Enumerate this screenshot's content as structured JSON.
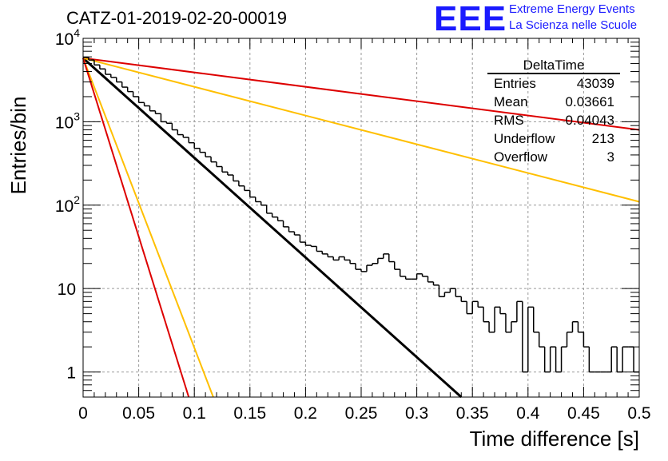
{
  "plot_title": "CATZ-01-2019-02-20-00019",
  "logo": {
    "mark": "EEE",
    "line1": "Extreme Energy Events",
    "line2": "La Scienza nelle Scuole"
  },
  "stats_box": {
    "title": "DeltaTime",
    "rows": [
      {
        "label": "Entries",
        "value": "43039"
      },
      {
        "label": "Mean",
        "value": "0.03661"
      },
      {
        "label": "RMS",
        "value": "0.04043"
      },
      {
        "label": "Underflow",
        "value": "213"
      },
      {
        "label": "Overflow",
        "value": "3"
      }
    ]
  },
  "colors": {
    "histogram": "#000000",
    "fit_black": "#000000",
    "red": "#dd0000",
    "orange": "#ffbf00",
    "grid": "#9a9a9a"
  },
  "chart_data": {
    "type": "line",
    "title": "CATZ-01-2019-02-20-00019",
    "xlabel": "Time difference [s]",
    "ylabel": "Entries/bin",
    "xlim": [
      0,
      0.5
    ],
    "ylim": [
      0.5,
      10000
    ],
    "yscale": "log",
    "grid": true,
    "x_ticks": [
      0,
      0.05,
      0.1,
      0.15,
      0.2,
      0.25,
      0.3,
      0.35,
      0.4,
      0.45,
      0.5
    ],
    "x_tick_labels": [
      "0",
      "0.05",
      "0.1",
      "0.15",
      "0.2",
      "0.25",
      "0.3",
      "0.35",
      "0.4",
      "0.45",
      "0.5"
    ],
    "y_ticks": [
      1,
      10,
      100,
      1000,
      10000
    ],
    "y_tick_labels": [
      {
        "base": "1",
        "exp": ""
      },
      {
        "base": "10",
        "exp": ""
      },
      {
        "base": "10",
        "exp": "2"
      },
      {
        "base": "10",
        "exp": "3"
      },
      {
        "base": "10",
        "exp": "4"
      }
    ],
    "histogram": {
      "bin_width": 0.005,
      "x_start": 0,
      "counts": [
        5900,
        5500,
        4800,
        4300,
        3700,
        3400,
        3000,
        2600,
        2300,
        2000,
        1700,
        1550,
        1350,
        1250,
        1000,
        960,
        800,
        700,
        650,
        560,
        480,
        430,
        380,
        330,
        290,
        250,
        230,
        195,
        170,
        150,
        125,
        110,
        100,
        80,
        72,
        65,
        55,
        48,
        44,
        36,
        33,
        32,
        28,
        26,
        24,
        22,
        24,
        22,
        20,
        17,
        16,
        19,
        20,
        23,
        26,
        21,
        17,
        14,
        13,
        13,
        15,
        14,
        12,
        11,
        8,
        9,
        10,
        8,
        7,
        5,
        7,
        6,
        4,
        3,
        6,
        5,
        3,
        4,
        7,
        1,
        6,
        3,
        2,
        1,
        2,
        1,
        2,
        3,
        4,
        3,
        2,
        1,
        1,
        1,
        1,
        2,
        1,
        2,
        2,
        1
      ]
    },
    "series": [
      {
        "color_key": "fit_black",
        "x": [
          0,
          0.34
        ],
        "y": [
          5800,
          0.5
        ]
      },
      {
        "color_key": "red",
        "x": [
          0,
          0.5
        ],
        "y": [
          5800,
          800
        ]
      },
      {
        "color_key": "orange",
        "x": [
          0,
          0.5
        ],
        "y": [
          5800,
          110
        ]
      },
      {
        "color_key": "orange",
        "x": [
          0,
          0.117
        ],
        "y": [
          5800,
          0.5
        ]
      },
      {
        "color_key": "red",
        "x": [
          0,
          0.095
        ],
        "y": [
          5800,
          0.5
        ]
      }
    ]
  }
}
